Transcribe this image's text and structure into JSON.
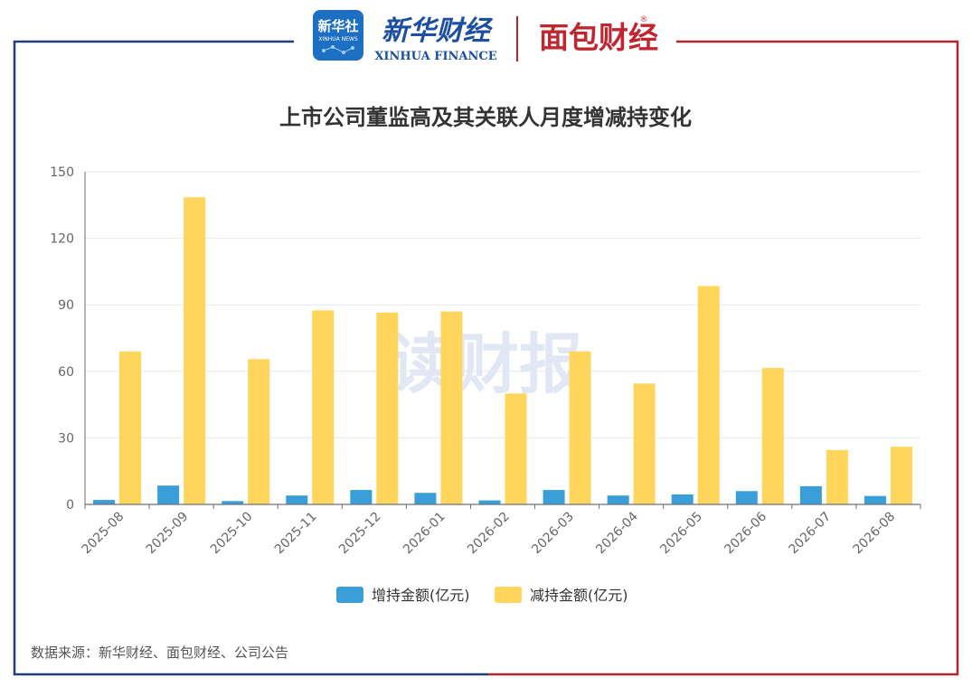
{
  "header": {
    "xinhua_badge_line1": "新华社",
    "xinhua_badge_line2": "XINHUA NEWS",
    "xinhua_finance_cn": "新华财经",
    "xinhua_finance_en": "XINHUA FINANCE",
    "mianbao_logo": "面包财经",
    "registered_mark": "®"
  },
  "watermark": "读财报",
  "footer": {
    "source": "数据来源：新华财经、面包财经、公司公告"
  },
  "colors": {
    "increase": "#3a9fd8",
    "decrease": "#ffd55c",
    "frame_left": "#1f3f7a",
    "frame_right": "#b8242e"
  },
  "chart_data": {
    "type": "bar",
    "title": "上市公司董监高及其关联人月度增减持变化",
    "categories": [
      "2025-08",
      "2025-09",
      "2025-10",
      "2025-11",
      "2025-12",
      "2026-01",
      "2026-02",
      "2026-03",
      "2026-04",
      "2026-05",
      "2026-06",
      "2026-07",
      "2026-08"
    ],
    "series": [
      {
        "name": "增持金额(亿元)",
        "values": [
          2,
          8.5,
          1.5,
          4,
          6.5,
          5.2,
          1.8,
          6.5,
          4,
          4.5,
          6,
          8.2,
          3.8
        ]
      },
      {
        "name": "减持金额(亿元)",
        "values": [
          69,
          138.5,
          65.5,
          87.5,
          86.5,
          87,
          50,
          69,
          54.5,
          98.5,
          61.5,
          24.5,
          26
        ]
      }
    ],
    "ylim": [
      0,
      150
    ],
    "yticks": [
      0,
      30,
      60,
      90,
      120,
      150
    ],
    "grid": true,
    "legend_position": "bottom-center"
  }
}
